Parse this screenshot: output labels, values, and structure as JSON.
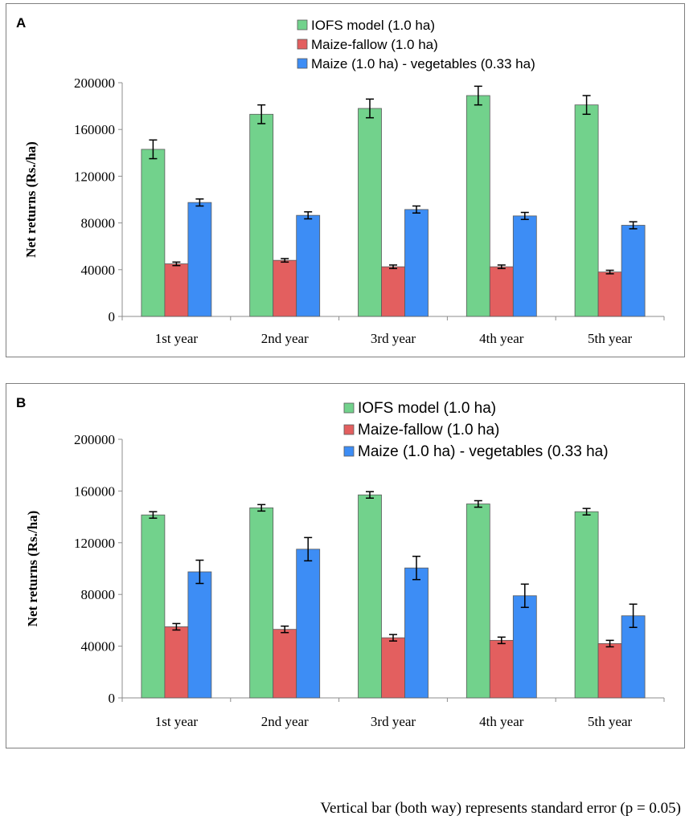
{
  "footnote": "Vertical bar (both way) represents standard error (p = 0.05)",
  "chart_data": [
    {
      "panel": "A",
      "type": "bar",
      "ylabel": "Net returns (Rs./ha)",
      "xlabel": "",
      "ylim": [
        0,
        200000
      ],
      "yticks": [
        0,
        40000,
        80000,
        120000,
        160000,
        200000
      ],
      "ytick_labels": [
        "0",
        "40000",
        "80000",
        "120000",
        "160000",
        "200000"
      ],
      "categories": [
        "1st year",
        "2nd year",
        "3rd year",
        "4th year",
        "5th year"
      ],
      "legend_position": "top-center",
      "series": [
        {
          "name": "IOFS model (1.0 ha)",
          "color": "#72d28c",
          "values": [
            143000,
            173000,
            178000,
            189000,
            181000
          ],
          "errors": [
            8000,
            8000,
            8000,
            8000,
            8000
          ]
        },
        {
          "name": "Maize-fallow (1.0 ha)",
          "color": "#e35f5f",
          "values": [
            45000,
            48000,
            42500,
            42500,
            38000
          ],
          "errors": [
            1500,
            1500,
            1500,
            1500,
            1500
          ]
        },
        {
          "name": "Maize (1.0 ha) - vegetables (0.33 ha)",
          "color": "#3d8df5",
          "values": [
            97500,
            86500,
            91500,
            86000,
            78000
          ],
          "errors": [
            3000,
            3000,
            3000,
            3000,
            3000
          ]
        }
      ]
    },
    {
      "panel": "B",
      "type": "bar",
      "ylabel": "Net returns (Rs./ha)",
      "xlabel": "",
      "ylim": [
        0,
        200000
      ],
      "yticks": [
        0,
        40000,
        80000,
        120000,
        160000,
        200000
      ],
      "ytick_labels": [
        "0",
        "40000",
        "80000",
        "120000",
        "160000",
        "200000"
      ],
      "categories": [
        "1st year",
        "2nd year",
        "3rd year",
        "4th year",
        "5th year"
      ],
      "legend_position": "top-center",
      "series": [
        {
          "name": "IOFS model (1.0 ha)",
          "color": "#72d28c",
          "values": [
            141500,
            147000,
            157000,
            150000,
            144000
          ],
          "errors": [
            2500,
            2500,
            2500,
            2500,
            2500
          ]
        },
        {
          "name": "Maize-fallow (1.0 ha)",
          "color": "#e35f5f",
          "values": [
            55000,
            53000,
            46500,
            44500,
            42000
          ],
          "errors": [
            2500,
            2500,
            2500,
            2500,
            2500
          ]
        },
        {
          "name": "Maize (1.0 ha) - vegetables (0.33 ha)",
          "color": "#3d8df5",
          "values": [
            97500,
            115000,
            100500,
            79000,
            63500
          ],
          "errors": [
            9000,
            9000,
            9000,
            9000,
            9000
          ]
        }
      ]
    }
  ]
}
